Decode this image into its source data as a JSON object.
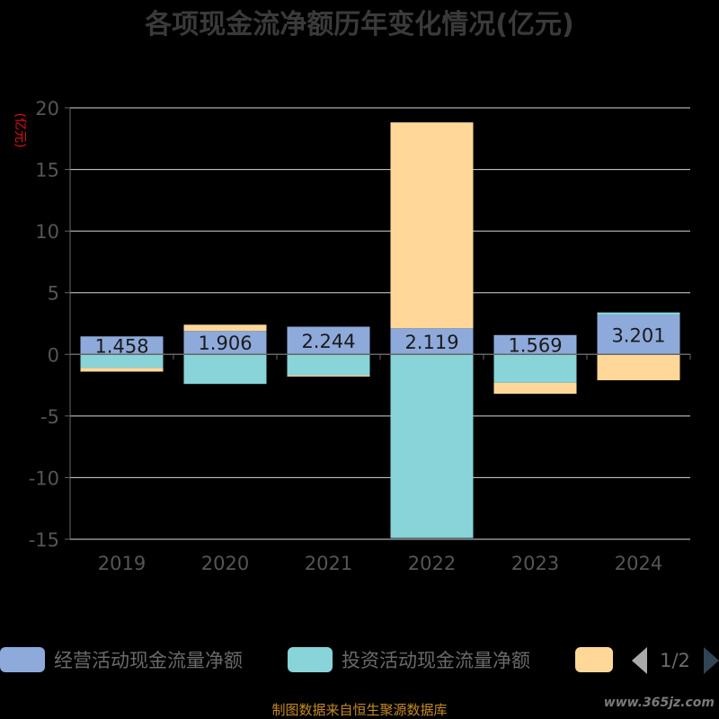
{
  "chart_data": {
    "type": "bar",
    "stacked": true,
    "title": "各项现金流净额历年变化情况(亿元)",
    "ylabel": "(亿元)",
    "xlabel": "",
    "ylim": [
      -15,
      20
    ],
    "yticks": [
      -15,
      -10,
      -5,
      0,
      5,
      10,
      15,
      20
    ],
    "grid": true,
    "categories": [
      "2019",
      "2020",
      "2021",
      "2022",
      "2023",
      "2024"
    ],
    "series": [
      {
        "name": "经营活动现金流量净额",
        "color": "#8eaadb",
        "values": [
          1.458,
          1.906,
          2.244,
          2.119,
          1.569,
          3.201
        ],
        "labels": [
          "1.458",
          "1.906",
          "2.244",
          "2.119",
          "1.569",
          "3.201"
        ]
      },
      {
        "name": "投资活动现金流量净额",
        "color": "#88d4d8",
        "values": [
          -1.1,
          -2.4,
          -1.7,
          -14.9,
          -2.3,
          0.2
        ]
      },
      {
        "name": "",
        "color": "#ffd899",
        "values": [
          -0.3,
          0.5,
          -0.1,
          16.7,
          -0.9,
          -2.1
        ]
      }
    ]
  },
  "legend": {
    "items": [
      {
        "label": "经营活动现金流量净额",
        "color": "#8eaadb"
      },
      {
        "label": "投资活动现金流量净额",
        "color": "#88d4d8"
      },
      {
        "label": "",
        "color": "#ffd899"
      }
    ],
    "page": "1/2"
  },
  "footer": {
    "source": "制图数据来自恒生聚源数据库",
    "watermark": "www.365jz.com"
  }
}
